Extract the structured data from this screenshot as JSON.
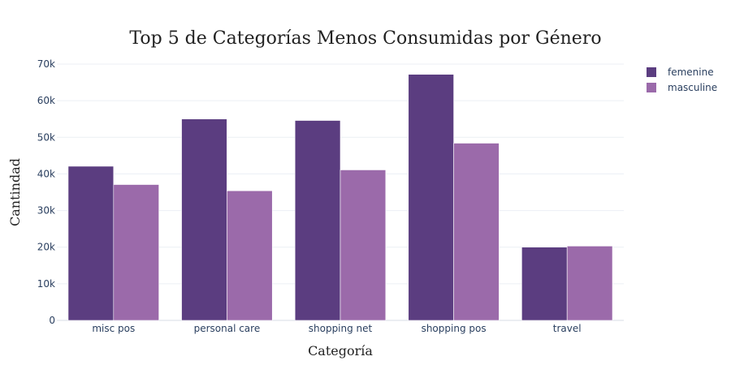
{
  "chart_data": {
    "type": "bar",
    "title": "Top 5 de Categorías Menos Consumidas por Género",
    "xlabel": "Categoría",
    "ylabel": "Cantindad",
    "categories": [
      "misc pos",
      "personal care",
      "shopping net",
      "shopping pos",
      "travel"
    ],
    "series": [
      {
        "name": "femenine",
        "color": "#5b3d80",
        "values": [
          42100,
          55000,
          54600,
          67200,
          20000
        ]
      },
      {
        "name": "masculine",
        "color": "#9b6aaa",
        "values": [
          37100,
          35400,
          41100,
          48400,
          20300
        ]
      }
    ],
    "ylim": [
      0,
      70000
    ],
    "yticks": [
      {
        "value": 0,
        "label": "0"
      },
      {
        "value": 10000,
        "label": "10k"
      },
      {
        "value": 20000,
        "label": "20k"
      },
      {
        "value": 30000,
        "label": "30k"
      },
      {
        "value": 40000,
        "label": "40k"
      },
      {
        "value": 50000,
        "label": "50k"
      },
      {
        "value": 60000,
        "label": "60k"
      },
      {
        "value": 70000,
        "label": "70k"
      }
    ],
    "grid": true,
    "legend_position": "top-right"
  }
}
